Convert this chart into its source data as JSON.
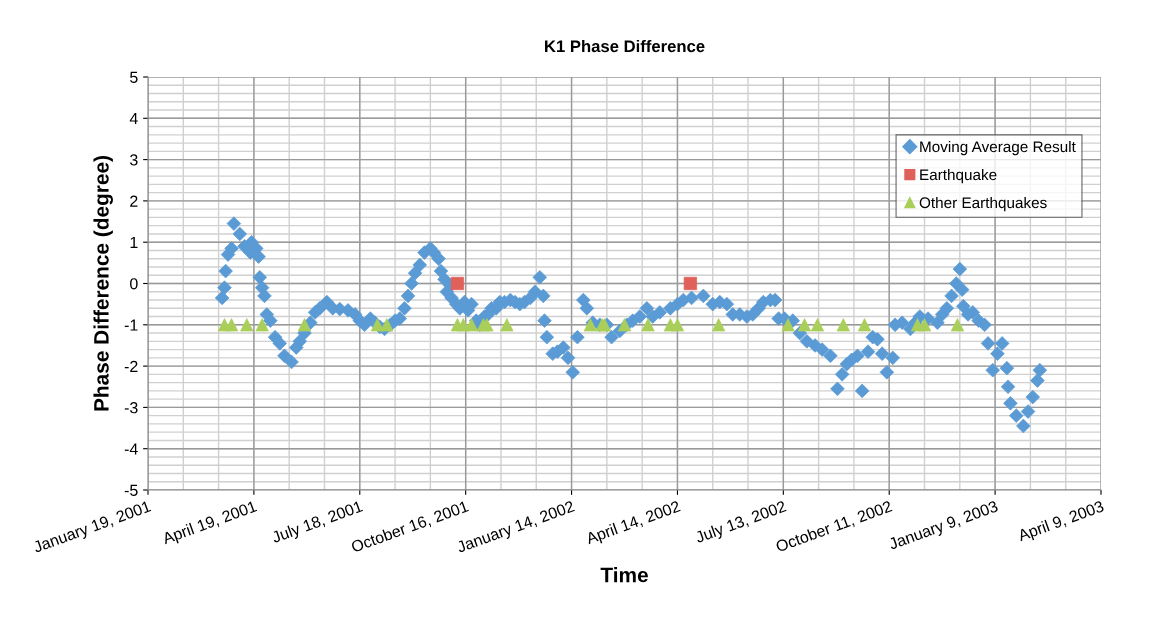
{
  "chart_data": {
    "type": "scatter",
    "title": "K1 Phase Difference",
    "xlabel": "Time",
    "ylabel": "Phase Difference (degree)",
    "xlim": [
      "2001-01-19",
      "2003-04-09"
    ],
    "xticks": [
      {
        "value": "2001-01-19",
        "label": "January 19, 2001"
      },
      {
        "value": "2001-04-19",
        "label": "April 19, 2001"
      },
      {
        "value": "2001-07-18",
        "label": "July 18, 2001"
      },
      {
        "value": "2001-10-16",
        "label": "October 16, 2001"
      },
      {
        "value": "2002-01-14",
        "label": "January 14, 2002"
      },
      {
        "value": "2002-04-14",
        "label": "April 14, 2002"
      },
      {
        "value": "2002-07-13",
        "label": "July 13, 2002"
      },
      {
        "value": "2002-10-11",
        "label": "October 11, 2002"
      },
      {
        "value": "2003-01-09",
        "label": "January 9, 2003"
      },
      {
        "value": "2003-04-09",
        "label": "April 9, 2003"
      }
    ],
    "ylim": [
      -5,
      5
    ],
    "yticks": [
      -5,
      -4,
      -3,
      -2,
      -1,
      0,
      1,
      2,
      3,
      4,
      5
    ],
    "grid": true,
    "legend": "top right",
    "series": [
      {
        "name": "Moving Average Result",
        "color": "#5b9bd5",
        "marker": "diamond",
        "x": [
          "2001-03-23",
          "2001-03-25",
          "2001-03-26",
          "2001-03-28",
          "2001-03-31",
          "2001-04-02",
          "2001-04-07",
          "2001-04-11",
          "2001-04-16",
          "2001-04-17",
          "2001-04-21",
          "2001-04-23",
          "2001-04-24",
          "2001-04-26",
          "2001-04-28",
          "2001-04-30",
          "2001-05-03",
          "2001-05-07",
          "2001-05-11",
          "2001-05-15",
          "2001-05-21",
          "2001-05-25",
          "2001-05-28",
          "2001-06-01",
          "2001-06-06",
          "2001-06-10",
          "2001-06-14",
          "2001-06-20",
          "2001-06-25",
          "2001-07-01",
          "2001-07-08",
          "2001-07-14",
          "2001-07-18",
          "2001-07-22",
          "2001-07-27",
          "2001-07-31",
          "2001-08-04",
          "2001-08-08",
          "2001-08-13",
          "2001-08-17",
          "2001-08-21",
          "2001-08-25",
          "2001-08-28",
          "2001-08-31",
          "2001-09-03",
          "2001-09-07",
          "2001-09-11",
          "2001-09-16",
          "2001-09-19",
          "2001-09-23",
          "2001-09-25",
          "2001-09-28",
          "2001-09-30",
          "2001-10-03",
          "2001-10-04",
          "2001-10-08",
          "2001-10-11",
          "2001-10-15",
          "2001-10-18",
          "2001-10-21",
          "2001-10-25",
          "2001-10-28",
          "2001-11-01",
          "2001-11-04",
          "2001-11-07",
          "2001-11-11",
          "2001-11-14",
          "2001-11-18",
          "2001-11-23",
          "2001-11-27",
          "2001-12-01",
          "2001-12-05",
          "2001-12-10",
          "2001-12-14",
          "2001-12-18",
          "2001-12-21",
          "2001-12-22",
          "2001-12-24",
          "2001-12-29",
          "2002-01-02",
          "2002-01-07",
          "2002-01-11",
          "2002-01-15",
          "2002-01-19",
          "2002-01-24",
          "2002-01-27",
          "2002-02-01",
          "2002-02-07",
          "2002-02-13",
          "2002-02-17",
          "2002-02-24",
          "2002-03-02",
          "2002-03-07",
          "2002-03-13",
          "2002-03-19",
          "2002-03-24",
          "2002-03-30",
          "2002-04-08",
          "2002-04-14",
          "2002-04-19",
          "2002-04-26",
          "2002-05-06",
          "2002-05-14",
          "2002-05-20",
          "2002-05-26",
          "2002-05-31",
          "2002-06-06",
          "2002-06-12",
          "2002-06-17",
          "2002-06-22",
          "2002-06-26",
          "2002-07-02",
          "2002-07-06",
          "2002-07-09",
          "2002-07-14",
          "2002-07-21",
          "2002-07-27",
          "2002-08-02",
          "2002-08-09",
          "2002-08-15",
          "2002-08-22",
          "2002-08-28",
          "2002-09-01",
          "2002-09-05",
          "2002-09-09",
          "2002-09-14",
          "2002-09-18",
          "2002-09-23",
          "2002-09-27",
          "2002-10-01",
          "2002-10-05",
          "2002-10-09",
          "2002-10-14",
          "2002-10-16",
          "2002-10-22",
          "2002-10-29",
          "2002-11-02",
          "2002-11-06",
          "2002-11-13",
          "2002-11-21",
          "2002-11-25",
          "2002-11-29",
          "2002-12-03",
          "2002-12-07",
          "2002-12-10",
          "2002-12-12",
          "2002-12-13",
          "2002-12-17",
          "2002-12-21",
          "2002-12-26",
          "2002-12-31",
          "2003-01-03",
          "2003-01-07",
          "2003-01-11",
          "2003-01-15",
          "2003-01-19",
          "2003-01-20",
          "2003-01-22",
          "2003-01-27",
          "2003-02-02",
          "2003-02-06",
          "2003-02-10",
          "2003-02-14",
          "2003-02-16"
        ],
        "values": [
          -0.35,
          -0.1,
          0.3,
          0.7,
          0.85,
          1.45,
          1.2,
          0.9,
          0.75,
          1.0,
          0.85,
          0.65,
          0.15,
          -0.1,
          -0.3,
          -0.75,
          -0.9,
          -1.3,
          -1.45,
          -1.75,
          -1.9,
          -1.55,
          -1.4,
          -1.2,
          -0.95,
          -0.7,
          -0.6,
          -0.45,
          -0.6,
          -0.62,
          -0.65,
          -0.75,
          -0.9,
          -1.0,
          -0.85,
          -0.95,
          -1.05,
          -1.1,
          -1.0,
          -0.9,
          -0.85,
          -0.6,
          -0.3,
          0.0,
          0.25,
          0.45,
          0.75,
          0.85,
          0.75,
          0.6,
          0.3,
          0.1,
          -0.2,
          -0.05,
          -0.35,
          -0.5,
          -0.6,
          -0.45,
          -0.65,
          -0.5,
          -0.9,
          -1.0,
          -0.8,
          -0.75,
          -0.6,
          -0.6,
          -0.45,
          -0.45,
          -0.4,
          -0.45,
          -0.5,
          -0.45,
          -0.35,
          -0.2,
          0.15,
          -0.3,
          -0.9,
          -1.3,
          -1.7,
          -1.65,
          -1.55,
          -1.8,
          -2.15,
          -1.3,
          -0.4,
          -0.6,
          -0.95,
          -1.0,
          -1.0,
          -1.3,
          -1.15,
          -1.0,
          -0.9,
          -0.8,
          -0.6,
          -0.8,
          -0.7,
          -0.6,
          -0.5,
          -0.4,
          -0.35,
          -0.3,
          -0.5,
          -0.45,
          -0.5,
          -0.75,
          -0.75,
          -0.8,
          -0.75,
          -0.6,
          -0.45,
          -0.4,
          -0.4,
          -0.85,
          -0.85,
          -0.9,
          -1.2,
          -1.4,
          -1.5,
          -1.6,
          -1.75,
          -2.55,
          -2.2,
          -1.95,
          -1.85,
          -1.75,
          -2.6,
          -1.65,
          -1.3,
          -1.35,
          -1.7,
          -2.15,
          -1.8,
          -1.0,
          -0.95,
          -1.1,
          -0.95,
          -0.8,
          -0.85,
          -0.95,
          -0.75,
          -0.6,
          -0.3,
          0.0,
          0.35,
          -0.15,
          -0.55,
          -0.75,
          -0.7,
          -0.9,
          -1.0,
          -1.45,
          -2.1,
          -1.7,
          -1.45,
          -2.05,
          -2.5,
          -2.9,
          -3.2,
          -3.45,
          -3.1,
          -2.75,
          -2.35,
          -2.1
        ]
      },
      {
        "name": "Earthquake",
        "color": "#e0605a",
        "marker": "square",
        "x": [
          "2001-10-09",
          "2002-04-25"
        ],
        "values": [
          0,
          0
        ]
      },
      {
        "name": "Other Earthquakes",
        "color": "#a9cf5a",
        "marker": "triangle",
        "x": [
          "2001-03-25",
          "2001-03-31",
          "2001-04-13",
          "2001-04-26",
          "2001-06-01",
          "2001-08-02",
          "2001-08-10",
          "2001-10-09",
          "2001-10-14",
          "2001-10-21",
          "2001-10-31",
          "2001-11-03",
          "2001-11-20",
          "2002-01-30",
          "2002-02-09",
          "2002-02-11",
          "2002-02-28",
          "2002-03-20",
          "2002-04-08",
          "2002-04-14",
          "2002-05-19",
          "2002-07-17",
          "2002-07-31",
          "2002-08-11",
          "2002-09-02",
          "2002-09-20",
          "2002-11-04",
          "2002-11-10",
          "2002-12-08"
        ],
        "values": [
          -1,
          -1,
          -1,
          -1,
          -1,
          -1,
          -1,
          -1,
          -1,
          -1,
          -1,
          -1,
          -1,
          -1,
          -1,
          -1,
          -1,
          -1,
          -1,
          -1,
          -1,
          -1,
          -1,
          -1,
          -1,
          -1,
          -1,
          -1,
          -1
        ]
      }
    ]
  }
}
